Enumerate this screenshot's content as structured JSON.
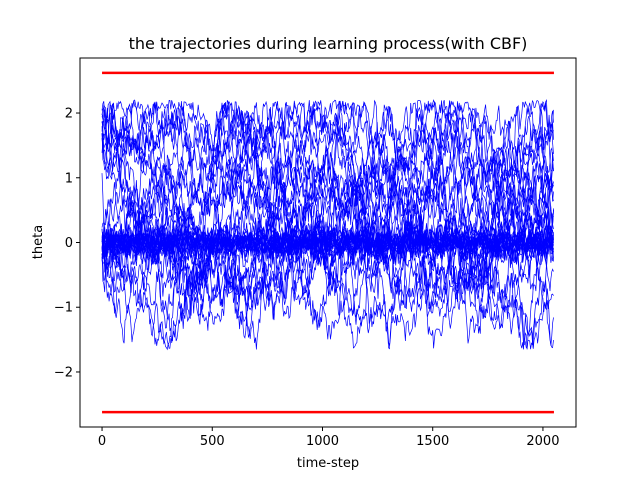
{
  "chart_data": {
    "type": "line",
    "title": "the trajectories during learning process(with CBF)",
    "xlabel": "time-step",
    "ylabel": "theta",
    "xlim": [
      -100,
      2150
    ],
    "ylim": [
      -2.85,
      2.85
    ],
    "xticks": [
      0,
      500,
      1000,
      1500,
      2000
    ],
    "yticks": [
      -2,
      -1,
      0,
      1,
      2
    ],
    "xtick_labels": [
      "0",
      "500",
      "1000",
      "1500",
      "2000"
    ],
    "ytick_labels": [
      "−2",
      "−1",
      "0",
      "1",
      "2"
    ],
    "grid": false,
    "bounds": [
      {
        "y": 2.62,
        "x": [
          0,
          2050
        ],
        "color": "#ff0000"
      },
      {
        "y": -2.62,
        "x": [
          0,
          2050
        ],
        "color": "#ff0000"
      }
    ],
    "trajectory_color": "#0000ff",
    "trajectory_count": 40,
    "trajectory_length": 2050,
    "approx_range": [
      -1.66,
      2.2
    ]
  }
}
